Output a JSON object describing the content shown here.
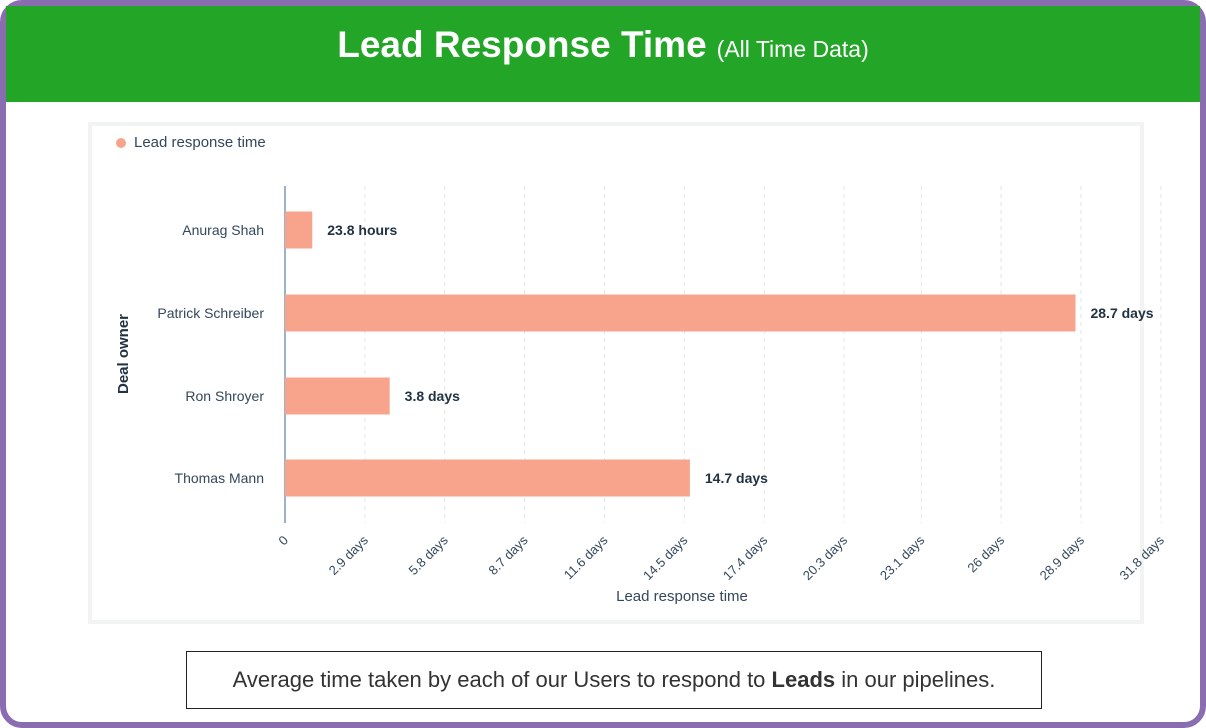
{
  "header": {
    "title": "Lead Response Time",
    "subtitle": "(All Time Data)"
  },
  "caption": {
    "before": "Average time taken by each of our Users to respond to ",
    "bold": "Leads",
    "after": " in our pipelines."
  },
  "colors": {
    "header_bg": "#23a528",
    "frame": "#8a6cb0",
    "bar": "#f8a48c",
    "axis_text": "#33475b"
  },
  "chart_data": {
    "type": "bar",
    "orientation": "horizontal",
    "legend": [
      "Lead response time"
    ],
    "legend_position": "top-left",
    "categories": [
      "Anurag Shah",
      "Patrick Schreiber",
      "Ron Shroyer",
      "Thomas Mann"
    ],
    "series": [
      {
        "name": "Lead response time",
        "values_days": [
          0.99,
          28.7,
          3.8,
          14.7
        ],
        "labels": [
          "23.8 hours",
          "28.7 days",
          "3.8 days",
          "14.7 days"
        ]
      }
    ],
    "xlabel": "Lead response time",
    "ylabel": "Deal owner",
    "x_ticks": [
      0,
      2.9,
      5.8,
      8.7,
      11.6,
      14.5,
      17.4,
      20.3,
      23.1,
      26,
      28.9,
      31.8
    ],
    "x_tick_labels": [
      "0",
      "2.9 days",
      "5.8 days",
      "8.7 days",
      "11.6 days",
      "14.5 days",
      "17.4 days",
      "20.3 days",
      "23.1 days",
      "26 days",
      "28.9 days",
      "31.8 days"
    ],
    "xlim": [
      0,
      31.8
    ],
    "grid": "vertical-dashed"
  }
}
